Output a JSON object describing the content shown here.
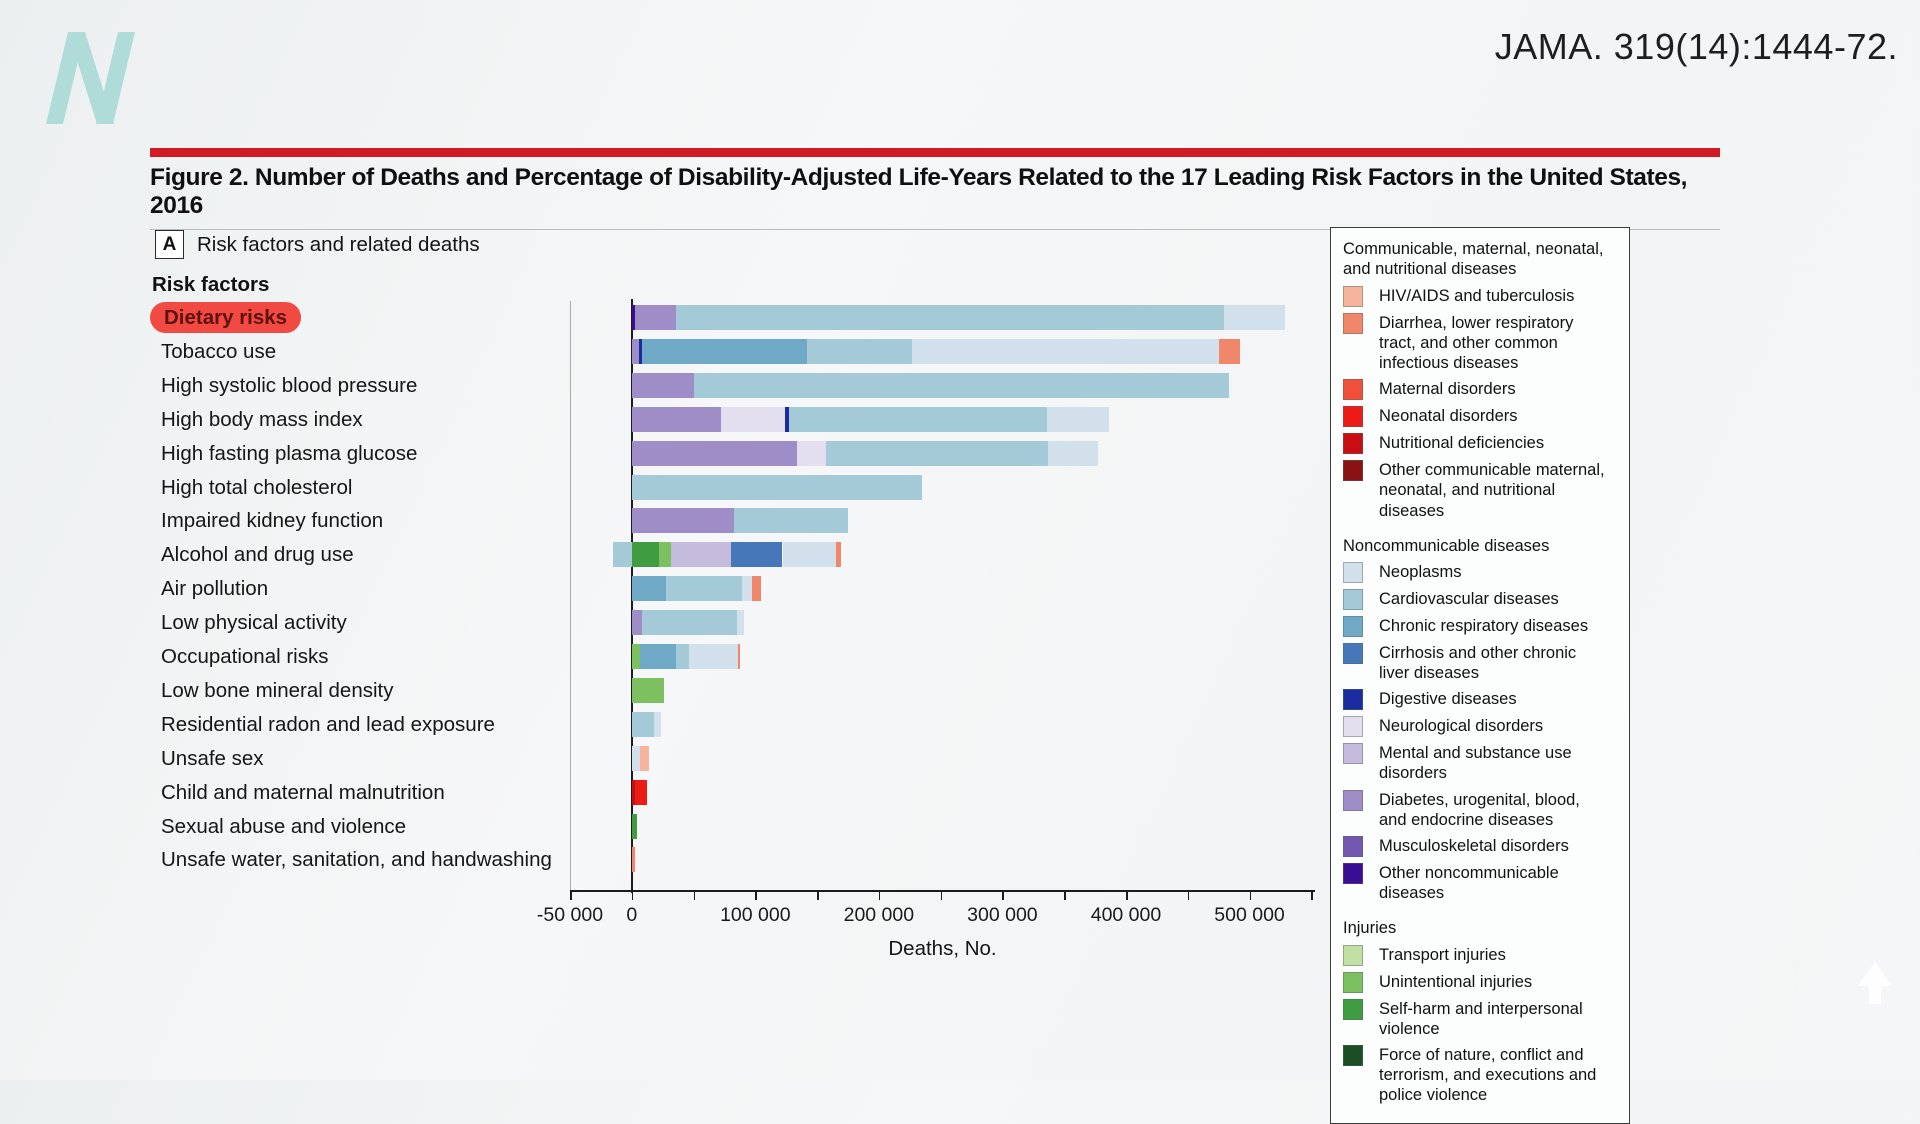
{
  "citation": "JAMA. 319(14):1444-72.",
  "figure_title": "Figure 2. Number of Deaths and Percentage of Disability-Adjusted Life-Years Related to the 17 Leading Risk Factors in the United States, 2016",
  "panel": {
    "marker": "A",
    "label": "Risk factors and related deaths"
  },
  "rows_header": "Risk factors",
  "highlight": {
    "label": "Dietary risks",
    "pill_bg": "#f04a42",
    "pill_text": "#5e120d"
  },
  "brand": {
    "logo_color": "#afdcd8",
    "accent_red": "#d11a24"
  },
  "chart_data": {
    "type": "bar",
    "subtype": "horizontal-stacked",
    "title": "Risk factors and related deaths",
    "xlabel": "Deaths, No.",
    "xlim": [
      -50000,
      553000
    ],
    "grid": false,
    "legend_position": "right",
    "x_ticks": [
      {
        "value": -50000,
        "label": "-50 000"
      },
      {
        "value": 0,
        "label": "0"
      },
      {
        "value": 50000,
        "label": ""
      },
      {
        "value": 100000,
        "label": "100 000"
      },
      {
        "value": 150000,
        "label": ""
      },
      {
        "value": 200000,
        "label": "200 000"
      },
      {
        "value": 250000,
        "label": ""
      },
      {
        "value": 300000,
        "label": "300 000"
      },
      {
        "value": 350000,
        "label": ""
      },
      {
        "value": 400000,
        "label": "400 000"
      },
      {
        "value": 450000,
        "label": ""
      },
      {
        "value": 500000,
        "label": "500 000"
      },
      {
        "value": 550000,
        "label": ""
      }
    ],
    "colors": {
      "hiv-tb": "#f6b49c",
      "diarrhea-lri": "#f0876a",
      "maternal": "#f04f38",
      "neonatal": "#ed1b15",
      "nutritional": "#c90d12",
      "other-cmnn": "#8a1212",
      "neoplasms": "#d2e0eb",
      "cardiovascular": "#a4cad8",
      "chronic-respiratory": "#6fa9c6",
      "cirrhosis": "#4677b8",
      "digestive": "#1b2d9e",
      "neurological": "#e3dfee",
      "mental-substance": "#c5bbdc",
      "diabetes-urogenital": "#9e8dc6",
      "musculoskeletal": "#7157b0",
      "other-ncd": "#3a0d94",
      "transport": "#c0e0a4",
      "unintentional": "#7cc05f",
      "self-harm": "#3f9c40",
      "force-of-nature": "#1b4e22"
    },
    "rows": [
      {
        "label": "Dietary risks",
        "highlighted": true,
        "segments": [
          [
            "other-ncd",
            3000
          ],
          [
            "diabetes-urogenital",
            33000
          ],
          [
            "cardiovascular",
            443000
          ],
          [
            "neoplasms",
            50000
          ]
        ]
      },
      {
        "label": "Tobacco use",
        "segments": [
          [
            "diabetes-urogenital",
            6000
          ],
          [
            "digestive",
            2000
          ],
          [
            "chronic-respiratory",
            134000
          ],
          [
            "cardiovascular",
            85000
          ],
          [
            "neoplasms",
            248000
          ],
          [
            "diarrhea-lri",
            17000
          ]
        ]
      },
      {
        "label": "High systolic blood pressure",
        "segments": [
          [
            "diabetes-urogenital",
            50000
          ],
          [
            "cardiovascular",
            433000
          ]
        ]
      },
      {
        "label": "High body mass index",
        "segments": [
          [
            "diabetes-urogenital",
            72000
          ],
          [
            "neurological",
            52000
          ],
          [
            "digestive",
            3000
          ],
          [
            "cardiovascular",
            209000
          ],
          [
            "neoplasms",
            50000
          ]
        ]
      },
      {
        "label": "High fasting plasma glucose",
        "segments": [
          [
            "diabetes-urogenital",
            134000
          ],
          [
            "neurological",
            23000
          ],
          [
            "cardiovascular",
            180000
          ],
          [
            "neoplasms",
            40000
          ]
        ]
      },
      {
        "label": "High total cholesterol",
        "segments": [
          [
            "cardiovascular",
            235000
          ]
        ]
      },
      {
        "label": "Impaired kidney function",
        "segments": [
          [
            "diabetes-urogenital",
            83000
          ],
          [
            "cardiovascular",
            92000
          ]
        ]
      },
      {
        "label": "Alcohol and drug use",
        "neg_segments": [
          [
            "cardiovascular",
            -15000
          ]
        ],
        "segments": [
          [
            "self-harm",
            22000
          ],
          [
            "unintentional",
            10000
          ],
          [
            "mental-substance",
            48000
          ],
          [
            "cirrhosis",
            42000
          ],
          [
            "neoplasms",
            43000
          ],
          [
            "diarrhea-lri",
            4000
          ]
        ]
      },
      {
        "label": "Air pollution",
        "segments": [
          [
            "chronic-respiratory",
            28000
          ],
          [
            "cardiovascular",
            61000
          ],
          [
            "neoplasms",
            8000
          ],
          [
            "diarrhea-lri",
            8000
          ]
        ]
      },
      {
        "label": "Low physical activity",
        "segments": [
          [
            "diabetes-urogenital",
            8000
          ],
          [
            "cardiovascular",
            77000
          ],
          [
            "neoplasms",
            6000
          ]
        ]
      },
      {
        "label": "Occupational risks",
        "segments": [
          [
            "unintentional",
            7000
          ],
          [
            "chronic-respiratory",
            29000
          ],
          [
            "cardiovascular",
            10000
          ],
          [
            "neoplasms",
            40000
          ],
          [
            "diarrhea-lri",
            2000
          ]
        ]
      },
      {
        "label": "Low bone mineral density",
        "segments": [
          [
            "unintentional",
            26000
          ]
        ]
      },
      {
        "label": "Residential radon and lead exposure",
        "segments": [
          [
            "cardiovascular",
            18000
          ],
          [
            "neoplasms",
            6000
          ]
        ]
      },
      {
        "label": "Unsafe sex",
        "segments": [
          [
            "neoplasms",
            7000
          ],
          [
            "hiv-tb",
            7000
          ]
        ]
      },
      {
        "label": "Child and maternal malnutrition",
        "segments": [
          [
            "nutritional",
            3000
          ],
          [
            "neonatal",
            9000
          ]
        ]
      },
      {
        "label": "Sexual abuse and violence",
        "segments": [
          [
            "self-harm",
            4000
          ]
        ]
      },
      {
        "label": "Unsafe water, sanitation, and handwashing",
        "segments": [
          [
            "diarrhea-lri",
            3000
          ]
        ]
      }
    ]
  },
  "legend": {
    "sections": [
      {
        "header": "Communicable, maternal, neonatal, and nutritional diseases",
        "items": [
          {
            "key": "hiv-tb",
            "label": "HIV/AIDS and tuberculosis"
          },
          {
            "key": "diarrhea-lri",
            "label": "Diarrhea, lower respiratory tract, and other common infectious diseases"
          },
          {
            "key": "maternal",
            "label": "Maternal disorders"
          },
          {
            "key": "neonatal",
            "label": "Neonatal disorders"
          },
          {
            "key": "nutritional",
            "label": "Nutritional deficiencies"
          },
          {
            "key": "other-cmnn",
            "label": "Other communicable maternal, neonatal, and nutritional diseases"
          }
        ]
      },
      {
        "header": "Noncommunicable diseases",
        "items": [
          {
            "key": "neoplasms",
            "label": "Neoplasms"
          },
          {
            "key": "cardiovascular",
            "label": "Cardiovascular diseases"
          },
          {
            "key": "chronic-respiratory",
            "label": "Chronic respiratory diseases"
          },
          {
            "key": "cirrhosis",
            "label": "Cirrhosis and other chronic liver diseases"
          },
          {
            "key": "digestive",
            "label": "Digestive diseases"
          },
          {
            "key": "neurological",
            "label": "Neurological disorders"
          },
          {
            "key": "mental-substance",
            "label": "Mental and substance use disorders"
          },
          {
            "key": "diabetes-urogenital",
            "label": "Diabetes, urogenital, blood, and endocrine diseases"
          },
          {
            "key": "musculoskeletal",
            "label": "Musculoskeletal disorders"
          },
          {
            "key": "other-ncd",
            "label": "Other noncommunicable diseases"
          }
        ]
      },
      {
        "header": "Injuries",
        "items": [
          {
            "key": "transport",
            "label": "Transport injuries"
          },
          {
            "key": "unintentional",
            "label": "Unintentional injuries"
          },
          {
            "key": "self-harm",
            "label": "Self-harm and interpersonal violence"
          },
          {
            "key": "force-of-nature",
            "label": "Force of nature, conflict and terrorism, and executions and police violence"
          }
        ]
      }
    ]
  }
}
